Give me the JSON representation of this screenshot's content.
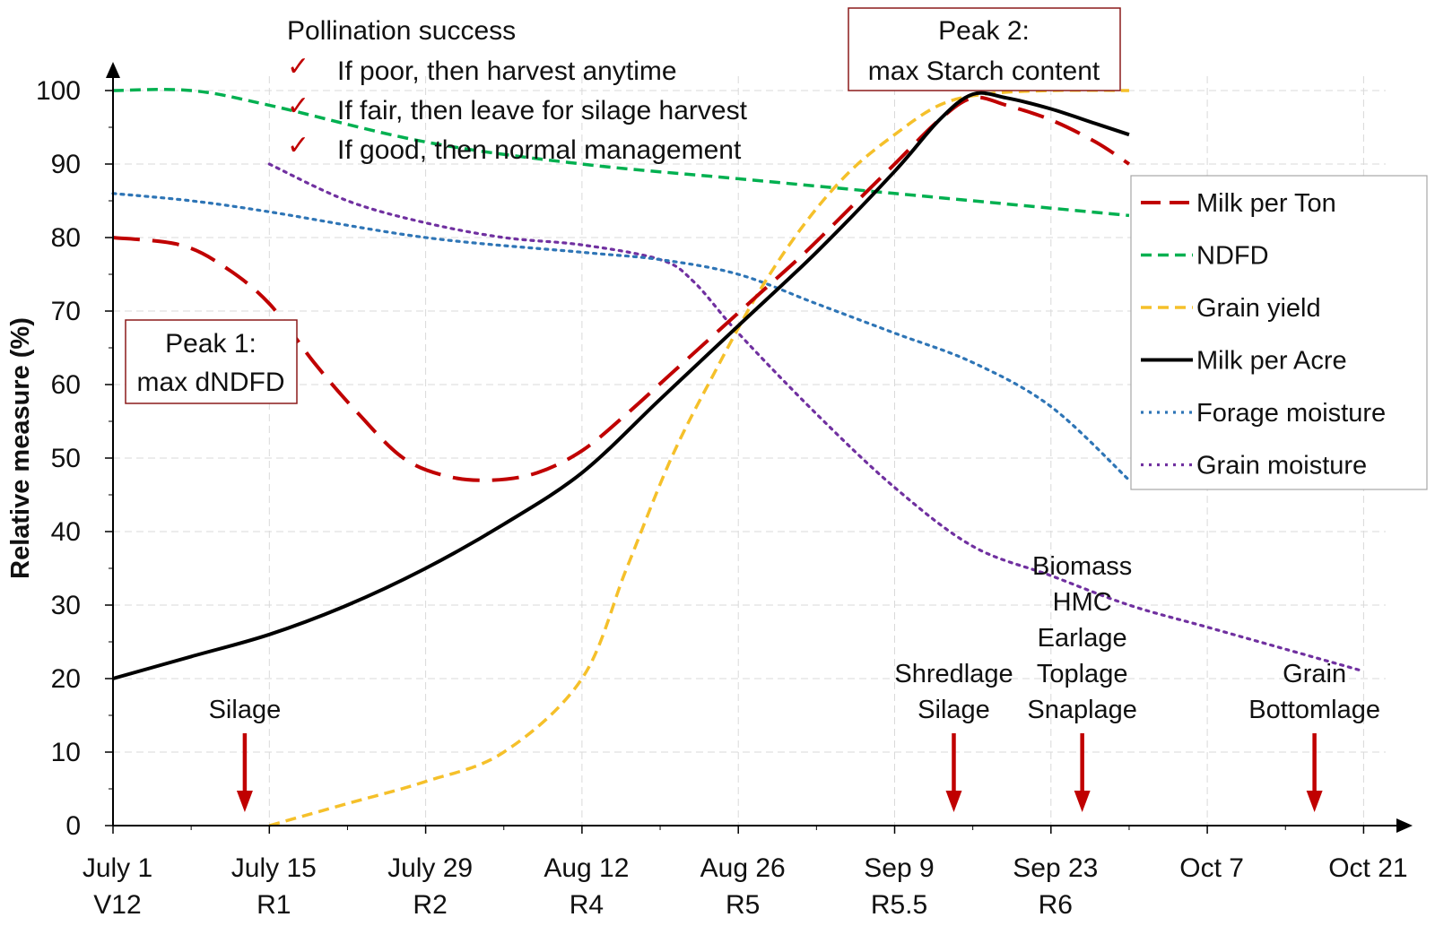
{
  "chart_data": {
    "type": "line",
    "ylabel": "Relative measure  (%)",
    "ylim": [
      0,
      100
    ],
    "yticks": [
      0,
      10,
      20,
      30,
      40,
      50,
      60,
      70,
      80,
      90,
      100
    ],
    "xlim": [
      0,
      119
    ],
    "xticks": [
      {
        "x": 0,
        "date": "July 1",
        "stage": "V12"
      },
      {
        "x": 14,
        "date": "July 15",
        "stage": "R1"
      },
      {
        "x": 28,
        "date": "July 29",
        "stage": "R2"
      },
      {
        "x": 42,
        "date": "Aug 12",
        "stage": "R4"
      },
      {
        "x": 56,
        "date": "Aug 26",
        "stage": "R5"
      },
      {
        "x": 70,
        "date": "Sep 9",
        "stage": "R5.5"
      },
      {
        "x": 84,
        "date": "Sep 23",
        "stage": "R6"
      },
      {
        "x": 98,
        "date": "Oct 7",
        "stage": ""
      },
      {
        "x": 112,
        "date": "Oct 21",
        "stage": ""
      }
    ],
    "grid": true,
    "legend_position": "right",
    "series": [
      {
        "name": "Milk per Ton",
        "color": "#c00000",
        "dash": "long-dash",
        "x": [
          0,
          6,
          10,
          14,
          18,
          22,
          26,
          30,
          34,
          38,
          42,
          46,
          50,
          54,
          58,
          62,
          66,
          70,
          74,
          77,
          80,
          84,
          88,
          91
        ],
        "y": [
          80,
          79,
          76,
          71,
          63,
          56,
          50,
          47.5,
          47,
          48,
          51,
          56,
          61.5,
          67,
          72.5,
          78,
          84,
          90,
          96,
          99,
          98,
          96,
          93,
          90
        ]
      },
      {
        "name": "NDFD",
        "color": "#00b050",
        "dash": "short-dash",
        "x": [
          0,
          7,
          14,
          28,
          42,
          56,
          70,
          84,
          91
        ],
        "y": [
          100,
          100,
          98,
          93,
          90,
          88,
          86,
          84,
          83
        ]
      },
      {
        "name": "Grain yield",
        "color": "#f5c02a",
        "dash": "short-dash",
        "x": [
          14,
          21,
          28,
          35,
          42,
          46,
          50,
          54,
          58,
          62,
          66,
          70,
          74,
          78,
          84,
          91
        ],
        "y": [
          0,
          3,
          6,
          10,
          20,
          35,
          50,
          62,
          73,
          82,
          89,
          94,
          98,
          99.5,
          100,
          100
        ]
      },
      {
        "name": "Milk per Acre",
        "color": "#000000",
        "dash": "solid",
        "x": [
          0,
          7,
          14,
          21,
          28,
          35,
          42,
          49,
          56,
          63,
          70,
          74,
          77,
          80,
          84,
          88,
          91
        ],
        "y": [
          20,
          23,
          26,
          30,
          35,
          41,
          48,
          58,
          68,
          78,
          89,
          96,
          99.5,
          99,
          97.5,
          95.5,
          94
        ]
      },
      {
        "name": "Forage moisture",
        "color": "#2e75b6",
        "dash": "dotted",
        "x": [
          0,
          7,
          14,
          28,
          42,
          49,
          56,
          63,
          70,
          77,
          84,
          91
        ],
        "y": [
          86,
          85,
          83.5,
          80,
          78,
          77,
          75,
          71,
          67,
          63,
          57,
          47
        ]
      },
      {
        "name": "Grain moisture",
        "color": "#7030a0",
        "dash": "dotted",
        "x": [
          14,
          21,
          28,
          35,
          42,
          49,
          52,
          56,
          63,
          70,
          77,
          84,
          91,
          98,
          105,
          112
        ],
        "y": [
          90,
          85,
          82,
          80,
          79,
          77,
          74,
          67,
          56,
          46,
          38,
          34,
          30,
          27,
          24,
          21
        ]
      }
    ],
    "arrows": [
      {
        "x": 11.8,
        "label_lines": [
          "Silage"
        ]
      },
      {
        "x": 75.3,
        "label_lines": [
          "Shredlage",
          "Silage"
        ]
      },
      {
        "x": 86.8,
        "label_lines": [
          "Biomass",
          "HMC",
          "Earlage",
          "Toplage",
          "Snaplage"
        ]
      },
      {
        "x": 107.6,
        "label_lines": [
          "Grain",
          "Bottomlage"
        ]
      }
    ],
    "annotations": {
      "peak1": {
        "lines": [
          "Peak 1:",
          "max dNDFD"
        ]
      },
      "peak2": {
        "lines": [
          "Peak 2:",
          "max Starch content"
        ]
      },
      "pollination": {
        "title": "Pollination success",
        "check_symbol": "✓",
        "items": [
          "If poor, then harvest anytime",
          "If fair, then leave for silage harvest",
          "If good, then normal management"
        ]
      }
    },
    "colors": {
      "arrow": "#c00000",
      "box_border": "#8b1a1a",
      "grid": "#d9d9d9",
      "axis": "#000000"
    }
  }
}
